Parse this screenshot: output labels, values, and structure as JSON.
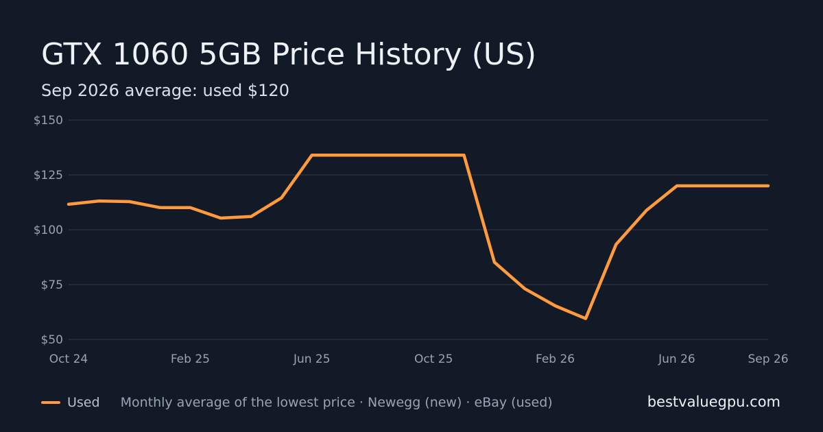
{
  "header": {
    "title": "GTX 1060 5GB Price History (US)",
    "subtitle": "Sep 2026 average: used $120"
  },
  "footer": {
    "legend_label": "Used",
    "note": "Monthly average of the lowest price · Newegg (new) · eBay (used)",
    "site": "bestvaluegpu.com"
  },
  "colors": {
    "background": "#131a27",
    "used_line": "#ff9a3d",
    "grid": "#283141",
    "tick_text": "#9aa3b2"
  },
  "chart_data": {
    "type": "line",
    "x": [
      "2024-10",
      "2024-11",
      "2024-12",
      "2025-01",
      "2025-02",
      "2025-03",
      "2025-04",
      "2025-05",
      "2025-06",
      "2025-07",
      "2025-08",
      "2025-09",
      "2025-10",
      "2025-11",
      "2025-12",
      "2026-01",
      "2026-02",
      "2026-03",
      "2026-04",
      "2026-05",
      "2026-06",
      "2026-07",
      "2026-08",
      "2026-09"
    ],
    "series": [
      {
        "name": "Used",
        "values": [
          111.6,
          113.1,
          112.8,
          110.1,
          110.1,
          105.3,
          106.0,
          114.5,
          134.0,
          134.0,
          134.0,
          134.0,
          134.0,
          134.0,
          85.2,
          73.1,
          65.3,
          59.5,
          93.3,
          108.8,
          120.0,
          120.0,
          120.0,
          120.0
        ]
      }
    ],
    "x_ticks": [
      {
        "x": "2024-10",
        "label": "Oct 24"
      },
      {
        "x": "2025-02",
        "label": "Feb 25"
      },
      {
        "x": "2025-06",
        "label": "Jun 25"
      },
      {
        "x": "2025-10",
        "label": "Oct 25"
      },
      {
        "x": "2026-02",
        "label": "Feb 26"
      },
      {
        "x": "2026-06",
        "label": "Jun 26"
      },
      {
        "x": "2026-09",
        "label": "Sep 26"
      }
    ],
    "y_ticks": [
      {
        "value": 50,
        "label": "$50"
      },
      {
        "value": 75,
        "label": "$75"
      },
      {
        "value": 100,
        "label": "$100"
      },
      {
        "value": 125,
        "label": "$125"
      },
      {
        "value": 150,
        "label": "$150"
      }
    ],
    "ylim": [
      50,
      150
    ],
    "grid": true,
    "legend": "bottom-left"
  }
}
